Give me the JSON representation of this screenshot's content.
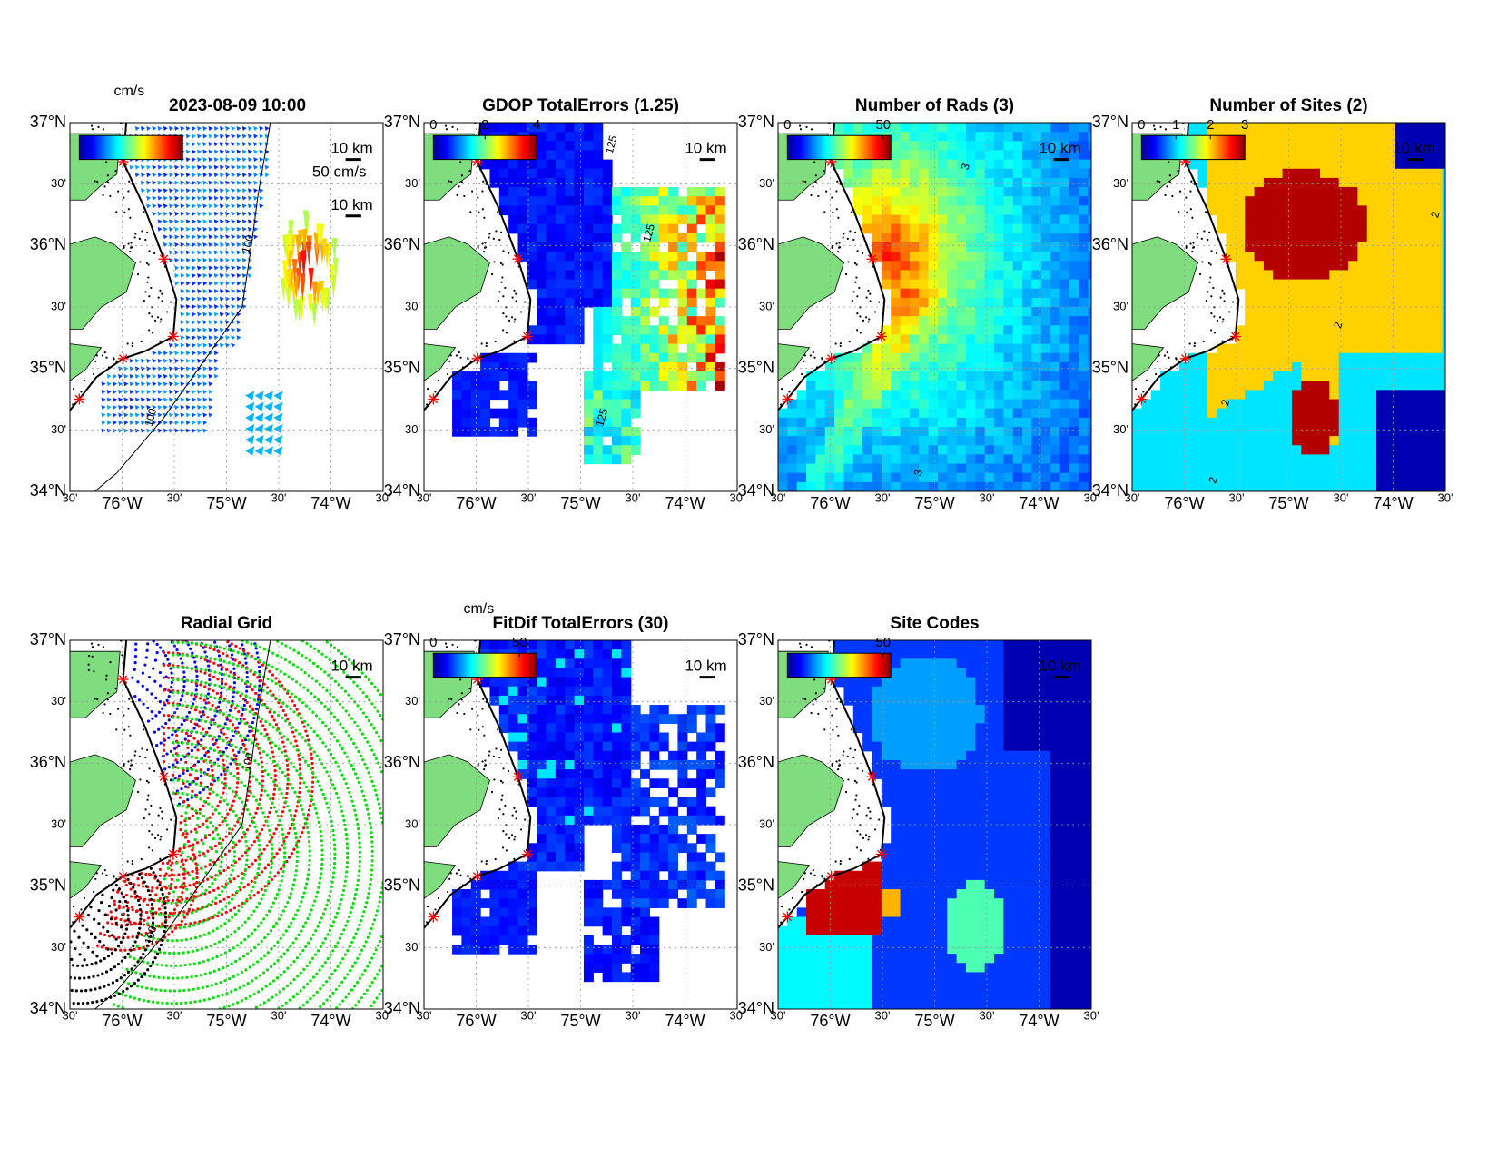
{
  "lat_labels": [
    "37°N",
    "30'",
    "36°N",
    "30'",
    "35°N",
    "30'",
    "34°N"
  ],
  "lon_labels": [
    "30'",
    "76°W",
    "30'",
    "75°W",
    "30'",
    "74°W",
    "30'"
  ],
  "panels": [
    {
      "title": "2023-08-09 10:00",
      "colorbar_label": "cm/s",
      "vector_label": "50 cm/s",
      "scale_label": "10 km",
      "contour_labels": [
        "100",
        "100"
      ]
    },
    {
      "title": "GDOP TotalErrors (1.25)",
      "colorbar_lim": [
        0,
        4
      ],
      "colorbar_ticks": [
        0,
        2,
        4
      ],
      "scale_label": "10 km",
      "contour_labels": [
        "125",
        "125",
        "125"
      ]
    },
    {
      "title": "Number of Rads (3)",
      "colorbar_lim": [
        0,
        54
      ],
      "colorbar_ticks": [
        0,
        50
      ],
      "scale_label": "10 km",
      "contour_labels": [
        "3",
        "3"
      ]
    },
    {
      "title": "Number of Sites (2)",
      "colorbar_lim": [
        0,
        3
      ],
      "colorbar_ticks": [
        0,
        1,
        2,
        3
      ],
      "scale_label": "10 km",
      "contour_labels": [
        "2",
        "2",
        "2",
        "2"
      ]
    },
    {
      "title": "Radial Grid",
      "scale_label": "10 km",
      "contour_labels": [
        "100",
        "100"
      ]
    },
    {
      "title": "FitDif TotalErrors (30)",
      "colorbar_label": "cm/s",
      "colorbar_lim": [
        0,
        60
      ],
      "colorbar_ticks": [
        0,
        50
      ],
      "scale_label": "10 km"
    },
    {
      "title": "Site Codes",
      "colorbar_lim": [
        0,
        54
      ],
      "colorbar_ticks": [
        50
      ],
      "scale_label": "10 km"
    }
  ]
}
